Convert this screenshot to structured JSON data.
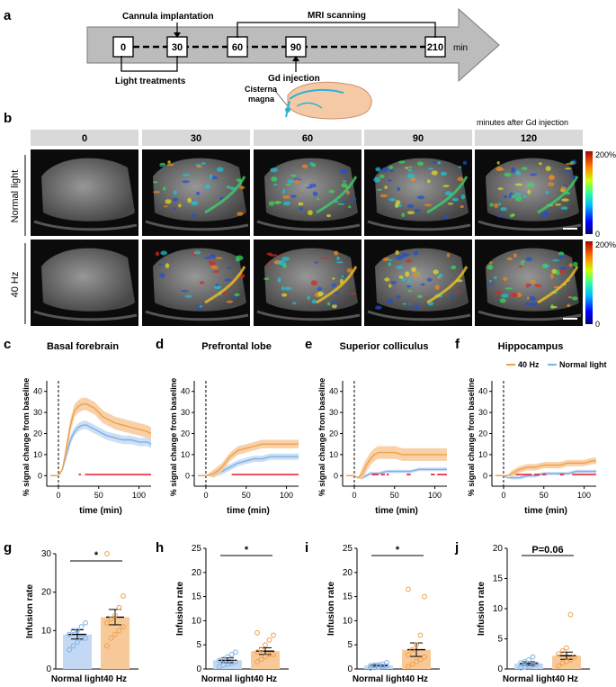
{
  "panel_labels": [
    "a",
    "b",
    "c",
    "d",
    "e",
    "f",
    "g",
    "h",
    "i",
    "j"
  ],
  "timeline": {
    "unit": "min",
    "ticks": [
      "0",
      "30",
      "60",
      "90",
      "210"
    ],
    "labels": {
      "cannula": "Cannula implantation",
      "mri": "MRI scanning",
      "light": "Light treatments",
      "gd": "Gd injection",
      "cisterna_1": "Cisterna",
      "cisterna_2": "magna"
    }
  },
  "mri_grid": {
    "header_note": "minutes after Gd injection",
    "columns": [
      "0",
      "30",
      "60",
      "90",
      "120"
    ],
    "rows": [
      "Normal light",
      "40 Hz"
    ],
    "colorbar": {
      "max": "200%",
      "min": "0"
    }
  },
  "colors": {
    "hz40": "#f0a048",
    "hz40_band": "#f7c999",
    "normal": "#7fb0e6",
    "normal_band": "#c3d9f3",
    "sig": "#e8192c",
    "header_bg": "#d9d9d9",
    "arrow_bg": "#bcbcbc"
  },
  "chart_data": [
    {
      "type": "line",
      "panel": "c",
      "title": "Basal forebrain",
      "xlabel": "time (min)",
      "ylabel": "% signal change from baseline",
      "xlim": [
        -10,
        115
      ],
      "ylim": [
        -5,
        45
      ],
      "xticks": [
        "0",
        "50",
        "100"
      ],
      "yticks": [
        "0",
        "10",
        "20",
        "30",
        "40"
      ],
      "legend": [],
      "series": [
        {
          "name": "40 Hz",
          "x": [
            -10,
            0,
            5,
            10,
            15,
            20,
            25,
            30,
            35,
            40,
            45,
            50,
            55,
            60,
            70,
            80,
            90,
            100,
            110,
            115
          ],
          "y": [
            0,
            0,
            3,
            13,
            24,
            31,
            33,
            34,
            34,
            33,
            32,
            30,
            28,
            27,
            25,
            24,
            23,
            22,
            21,
            20
          ],
          "sem": 3
        },
        {
          "name": "Normal light",
          "x": [
            -10,
            0,
            5,
            10,
            15,
            20,
            25,
            30,
            35,
            40,
            45,
            50,
            55,
            60,
            70,
            80,
            90,
            100,
            110,
            115
          ],
          "y": [
            0,
            0,
            3,
            10,
            17,
            21,
            23,
            24,
            24,
            23,
            22,
            21,
            20,
            19,
            18,
            17,
            17,
            16,
            16,
            15
          ],
          "sem": 2
        }
      ],
      "sig_segments": [
        [
          25,
          28
        ],
        [
          33,
          115
        ]
      ]
    },
    {
      "type": "line",
      "panel": "d",
      "title": "Prefrontal lobe",
      "xlabel": "time (min)",
      "ylabel": "% signal change from baseline",
      "xlim": [
        -10,
        115
      ],
      "ylim": [
        -5,
        45
      ],
      "xticks": [
        "0",
        "50",
        "100"
      ],
      "yticks": [
        "0",
        "10",
        "20",
        "30",
        "40"
      ],
      "legend": [],
      "series": [
        {
          "name": "40 Hz",
          "x": [
            -10,
            0,
            10,
            20,
            30,
            40,
            50,
            60,
            70,
            80,
            90,
            100,
            110,
            115
          ],
          "y": [
            0,
            0,
            1,
            4,
            9,
            12,
            13,
            14,
            15,
            15,
            15,
            15,
            15,
            15
          ],
          "sem": 2
        },
        {
          "name": "Normal light",
          "x": [
            -10,
            0,
            10,
            20,
            30,
            40,
            50,
            60,
            70,
            80,
            90,
            100,
            110,
            115
          ],
          "y": [
            0,
            0,
            1,
            2,
            4,
            6,
            7,
            8,
            8,
            9,
            9,
            9,
            9,
            9
          ],
          "sem": 1.5
        }
      ],
      "sig_segments": [
        [
          32,
          115
        ]
      ]
    },
    {
      "type": "line",
      "panel": "e",
      "title": "Superior colliculus",
      "xlabel": "time (min)",
      "ylabel": "% signal change from baseline",
      "xlim": [
        -10,
        115
      ],
      "ylim": [
        -5,
        45
      ],
      "xticks": [
        "0",
        "50",
        "100"
      ],
      "yticks": [
        "0",
        "10",
        "20",
        "30",
        "40"
      ],
      "legend": [],
      "series": [
        {
          "name": "40 Hz",
          "x": [
            -10,
            0,
            5,
            10,
            15,
            20,
            25,
            30,
            40,
            50,
            60,
            70,
            80,
            90,
            100,
            110,
            115
          ],
          "y": [
            0,
            0,
            -1,
            1,
            5,
            8,
            10,
            11,
            11,
            11,
            10,
            10,
            10,
            10,
            10,
            10,
            10
          ],
          "sem": 3
        },
        {
          "name": "Normal light",
          "x": [
            -10,
            0,
            5,
            10,
            15,
            20,
            30,
            40,
            50,
            60,
            70,
            80,
            90,
            100,
            110,
            115
          ],
          "y": [
            0,
            0,
            -1,
            -1,
            0,
            1,
            1,
            2,
            2,
            2,
            2,
            3,
            3,
            3,
            3,
            3
          ],
          "sem": 0.8
        }
      ],
      "sig_segments": [
        [
          22,
          30
        ],
        [
          33,
          38
        ],
        [
          40,
          43
        ],
        [
          65,
          70
        ],
        [
          95,
          100
        ],
        [
          103,
          115
        ]
      ]
    },
    {
      "type": "line",
      "panel": "f",
      "title": "Hippocampus",
      "xlabel": "time (min)",
      "ylabel": "% signal change from baseline",
      "xlim": [
        -10,
        115
      ],
      "ylim": [
        -5,
        45
      ],
      "xticks": [
        "0",
        "50",
        "100"
      ],
      "yticks": [
        "0",
        "10",
        "20",
        "30",
        "40"
      ],
      "legend": [
        "40 Hz",
        "Normal light"
      ],
      "series": [
        {
          "name": "40 Hz",
          "x": [
            -10,
            0,
            5,
            10,
            20,
            30,
            40,
            50,
            60,
            70,
            80,
            90,
            100,
            110,
            115
          ],
          "y": [
            0,
            0,
            0,
            1,
            3,
            4,
            4,
            5,
            5,
            5,
            6,
            6,
            6,
            7,
            7
          ],
          "sem": 1.5
        },
        {
          "name": "Normal light",
          "x": [
            -10,
            0,
            5,
            10,
            20,
            30,
            40,
            50,
            60,
            70,
            80,
            90,
            100,
            110,
            115
          ],
          "y": [
            0,
            0,
            -1,
            -1,
            -1,
            0,
            0,
            1,
            1,
            1,
            1,
            2,
            2,
            2,
            2
          ],
          "sem": 0.8
        }
      ],
      "sig_segments": [
        [
          15,
          35
        ],
        [
          38,
          45
        ],
        [
          48,
          53
        ],
        [
          70,
          75
        ],
        [
          85,
          115
        ]
      ]
    },
    {
      "type": "bar",
      "panel": "g",
      "ylabel": "Infusion rate",
      "categories": [
        "Normal light",
        "40 Hz"
      ],
      "ylim": [
        0,
        30
      ],
      "yticks": [
        "0",
        "10",
        "20",
        "30"
      ],
      "values": [
        9,
        13.5
      ],
      "sem": [
        1.2,
        2.0
      ],
      "sig_label": "*",
      "points": [
        [
          5,
          6,
          7,
          8,
          8,
          9,
          10,
          10,
          11,
          12
        ],
        [
          6,
          8,
          9,
          10,
          11,
          12,
          13,
          14,
          16,
          19,
          30
        ]
      ]
    },
    {
      "type": "bar",
      "panel": "h",
      "ylabel": "Infusion rate",
      "categories": [
        "Normal light",
        "40 Hz"
      ],
      "ylim": [
        0,
        25
      ],
      "yticks": [
        "0",
        "5",
        "10",
        "15",
        "20",
        "25"
      ],
      "values": [
        1.8,
        3.7
      ],
      "sem": [
        0.5,
        0.7
      ],
      "sig_label": "*",
      "points": [
        [
          0.5,
          0.8,
          1,
          1.2,
          1.5,
          1.8,
          2,
          2.5,
          3,
          3.5
        ],
        [
          1.5,
          2,
          2.5,
          3,
          3,
          3.5,
          4,
          5,
          6,
          7,
          7.5
        ]
      ]
    },
    {
      "type": "bar",
      "panel": "i",
      "ylabel": "Infusion rate",
      "categories": [
        "Normal light",
        "40 Hz"
      ],
      "ylim": [
        0,
        25
      ],
      "yticks": [
        "0",
        "5",
        "10",
        "15",
        "20",
        "25"
      ],
      "values": [
        0.7,
        4.0
      ],
      "sem": [
        0.2,
        1.4
      ],
      "sig_label": "*",
      "points": [
        [
          0.2,
          0.3,
          0.4,
          0.5,
          0.6,
          0.7,
          0.8,
          0.9,
          1,
          1.3
        ],
        [
          0.5,
          1,
          1.5,
          2,
          2.5,
          3,
          4,
          5,
          7,
          15,
          16.5
        ]
      ]
    },
    {
      "type": "bar",
      "panel": "j",
      "ylabel": "Infusion rate",
      "categories": [
        "Normal light",
        "40 Hz"
      ],
      "ylim": [
        0,
        20
      ],
      "yticks": [
        "0",
        "5",
        "10",
        "15",
        "20"
      ],
      "values": [
        0.9,
        2.2
      ],
      "sem": [
        0.3,
        0.6
      ],
      "sig_label": "P=0.06",
      "points": [
        [
          0.2,
          0.3,
          0.4,
          0.6,
          0.8,
          1,
          1.2,
          1.5,
          2
        ],
        [
          0.5,
          1,
          1.2,
          1.5,
          2,
          2.5,
          3,
          3.5,
          9
        ]
      ]
    }
  ]
}
